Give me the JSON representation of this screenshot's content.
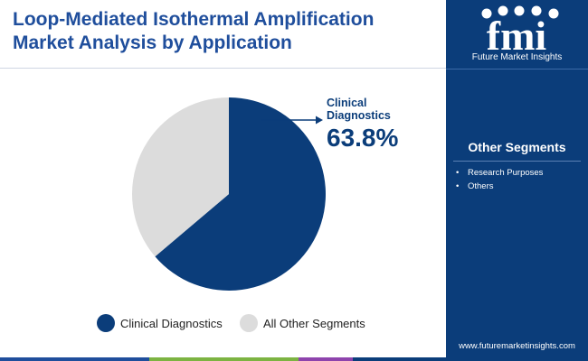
{
  "header": {
    "title_line1": "Loop-Mediated Isothermal Amplification",
    "title_line2": "Market Analysis by Application"
  },
  "brand": {
    "logo_text": "fmi",
    "tagline": "Future Market Insights",
    "url": "www.futuremarketinsights.com"
  },
  "side_panel": {
    "heading": "Other Segments",
    "items": [
      "Research Purposes",
      "Others"
    ]
  },
  "colors": {
    "primary": "#0b3d7a",
    "secondary": "#dcdcdc",
    "title": "#1f4e9c",
    "footer": [
      "#1f4e9c",
      "#7cb342",
      "#8e44ad",
      "#0b3d7a"
    ]
  },
  "chart_data": {
    "type": "pie",
    "categories": [
      "Clinical Diagnostics",
      "All Other Segments"
    ],
    "values": [
      63.8,
      36.2
    ],
    "colors": [
      "#0b3d7a",
      "#dcdcdc"
    ],
    "callout": {
      "category": "Clinical Diagnostics",
      "label_line1": "Clinical",
      "label_line2": "Diagnostics",
      "value_text": "63.8%"
    },
    "legend": {
      "placement": "bottom",
      "entries": [
        "Clinical Diagnostics",
        "All Other Segments"
      ]
    }
  }
}
